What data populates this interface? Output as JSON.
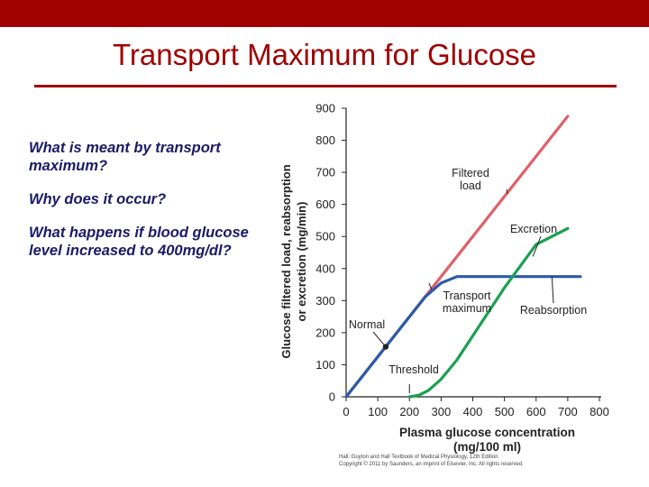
{
  "slide": {
    "title": "Transport Maximum for Glucose",
    "accent_color": "#a00000",
    "questions": [
      "What is meant by transport maximum?",
      "Why does it occur?",
      "What happens if blood glucose level increased to 400mg/dl?"
    ],
    "credit_lines": [
      "Hall: Guyton and Hall Textbook of Medical Physiology, 12th Edition",
      "Copyright © 2011 by Saunders, an imprint of Elsevier, Inc. All rights reserved."
    ]
  },
  "chart_data": {
    "type": "line",
    "title": "",
    "xlabel": "Plasma glucose concentration (mg/100 ml)",
    "ylabel": "Glucose filtered load, reabsorption or excretion (mg/min)",
    "xlabel_lines": [
      "Plasma glucose concentration",
      "(mg/100 ml)"
    ],
    "ylabel_lines": [
      "Glucose filtered load, reabsorption",
      "or excretion (mg/min)"
    ],
    "xlim": [
      0,
      800
    ],
    "ylim": [
      0,
      900
    ],
    "x_ticks": [
      0,
      100,
      200,
      300,
      400,
      500,
      600,
      700,
      800
    ],
    "y_ticks": [
      0,
      100,
      200,
      300,
      400,
      500,
      600,
      700,
      800,
      900
    ],
    "series": [
      {
        "name": "Filtered load",
        "color": "#e0606a",
        "points": [
          [
            0,
            0
          ],
          [
            700,
            875
          ]
        ]
      },
      {
        "name": "Reabsorption",
        "color": "#2a5aa8",
        "points": [
          [
            0,
            0
          ],
          [
            100,
            125
          ],
          [
            200,
            250
          ],
          [
            250,
            312
          ],
          [
            300,
            355
          ],
          [
            350,
            375
          ],
          [
            400,
            375
          ],
          [
            500,
            375
          ],
          [
            600,
            375
          ],
          [
            740,
            375
          ]
        ]
      },
      {
        "name": "Excretion",
        "color": "#1aa050",
        "points": [
          [
            200,
            0
          ],
          [
            230,
            5
          ],
          [
            260,
            20
          ],
          [
            300,
            55
          ],
          [
            350,
            115
          ],
          [
            400,
            190
          ],
          [
            500,
            340
          ],
          [
            600,
            475
          ],
          [
            700,
            525
          ]
        ]
      }
    ],
    "annotations": [
      {
        "id": "filtered-load",
        "lines": [
          "Filtered",
          "load"
        ]
      },
      {
        "id": "excretion",
        "lines": [
          "Excretion"
        ]
      },
      {
        "id": "transport-maximum",
        "lines": [
          "Transport",
          "maximum"
        ]
      },
      {
        "id": "reabsorption",
        "lines": [
          "Reabsorption"
        ]
      },
      {
        "id": "normal",
        "lines": [
          "Normal"
        ]
      },
      {
        "id": "threshold",
        "lines": [
          "Threshold"
        ]
      }
    ],
    "normal_point": [
      125,
      156
    ]
  }
}
